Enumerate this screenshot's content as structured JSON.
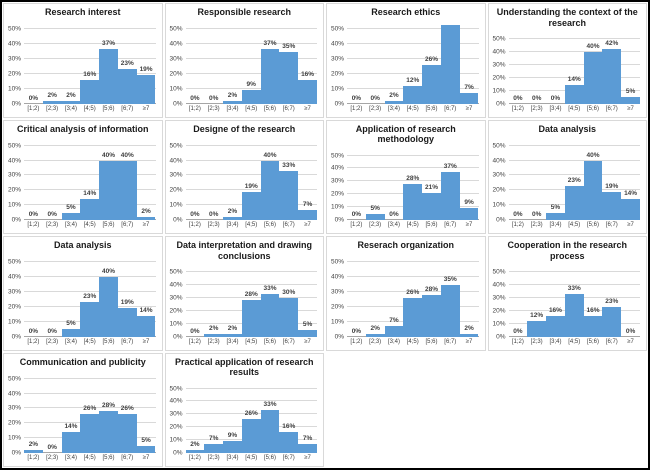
{
  "figure": {
    "background": "#ffffff",
    "border_color": "#000000"
  },
  "chart_defaults": {
    "type": "bar",
    "bar_color": "#5b9bd5",
    "gridline_color": "#d9d9d9",
    "axis_line_color": "#a6a6a6",
    "axis_text_color": "#404040",
    "grid": true,
    "legend": "none",
    "categories": [
      "[1;2)",
      "[2;3)",
      "[3;4)",
      "[4;5)",
      "[5;6)",
      "[6;7)",
      "≥7"
    ],
    "y_tick_values": [
      0,
      10,
      20,
      30,
      40,
      50
    ],
    "y_tick_labels": [
      "0%",
      "10%",
      "20%",
      "30%",
      "40%",
      "50%"
    ],
    "ylim": [
      0,
      55
    ]
  },
  "chart_data": [
    {
      "type": "bar",
      "title": "Research interest",
      "values": [
        0,
        2,
        2,
        16,
        37,
        23,
        19
      ],
      "labels": [
        "0%",
        "2%",
        "2%",
        "16%",
        "37%",
        "23%",
        "19%"
      ]
    },
    {
      "type": "bar",
      "title": "Responsible research",
      "values": [
        0,
        0,
        2,
        9,
        37,
        35,
        16
      ],
      "labels": [
        "0%",
        "0%",
        "2%",
        "9%",
        "37%",
        "35%",
        "16%"
      ]
    },
    {
      "type": "bar",
      "title": "Research ethics",
      "values": [
        0,
        0,
        2,
        12,
        26,
        53,
        7
      ],
      "labels": [
        "0%",
        "0%",
        "2%",
        "12%",
        "26%",
        "",
        "7%"
      ]
    },
    {
      "type": "bar",
      "title": "Understanding the context of the research",
      "values": [
        0,
        0,
        0,
        14,
        40,
        42,
        5
      ],
      "labels": [
        "0%",
        "0%",
        "0%",
        "14%",
        "40%",
        "42%",
        "5%"
      ]
    },
    {
      "type": "bar",
      "title": "Critical analysis of information",
      "values": [
        0,
        0,
        5,
        14,
        40,
        40,
        2
      ],
      "labels": [
        "0%",
        "0%",
        "5%",
        "14%",
        "40%",
        "40%",
        "2%"
      ]
    },
    {
      "type": "bar",
      "title": "Designe of the research",
      "values": [
        0,
        0,
        2,
        19,
        40,
        33,
        7
      ],
      "labels": [
        "0%",
        "0%",
        "2%",
        "19%",
        "40%",
        "33%",
        "7%"
      ]
    },
    {
      "type": "bar",
      "title": "Application of research methodology",
      "values": [
        0,
        5,
        0,
        28,
        21,
        37,
        9
      ],
      "labels": [
        "0%",
        "5%",
        "0%",
        "28%",
        "21%",
        "37%",
        "9%"
      ]
    },
    {
      "type": "bar",
      "title": "Data analysis",
      "values": [
        0,
        0,
        5,
        23,
        40,
        19,
        14
      ],
      "labels": [
        "0%",
        "0%",
        "5%",
        "23%",
        "40%",
        "19%",
        "14%"
      ]
    },
    {
      "type": "bar",
      "title": "Data analysis",
      "values": [
        0,
        0,
        5,
        23,
        40,
        19,
        14
      ],
      "labels": [
        "0%",
        "0%",
        "5%",
        "23%",
        "40%",
        "19%",
        "14%"
      ]
    },
    {
      "type": "bar",
      "title": "Data interpretation and drawing conclusions",
      "values": [
        0,
        2,
        2,
        28,
        33,
        30,
        5
      ],
      "labels": [
        "0%",
        "2%",
        "2%",
        "28%",
        "33%",
        "30%",
        "5%"
      ]
    },
    {
      "type": "bar",
      "title": "Reserach organization",
      "values": [
        0,
        2,
        7,
        26,
        28,
        35,
        2
      ],
      "labels": [
        "0%",
        "2%",
        "7%",
        "26%",
        "28%",
        "35%",
        "2%"
      ]
    },
    {
      "type": "bar",
      "title": "Cooperation in the research process",
      "values": [
        0,
        12,
        16,
        33,
        16,
        23,
        0
      ],
      "labels": [
        "0%",
        "12%",
        "16%",
        "33%",
        "16%",
        "23%",
        "0%"
      ]
    },
    {
      "type": "bar",
      "title": "Communication and publicity",
      "values": [
        2,
        0,
        14,
        26,
        28,
        26,
        5
      ],
      "labels": [
        "2%",
        "0%",
        "14%",
        "26%",
        "28%",
        "26%",
        "5%"
      ]
    },
    {
      "type": "bar",
      "title": "Practical application of research results",
      "values": [
        2,
        7,
        9,
        26,
        33,
        16,
        7
      ],
      "labels": [
        "2%",
        "7%",
        "9%",
        "26%",
        "33%",
        "16%",
        "7%"
      ]
    }
  ]
}
